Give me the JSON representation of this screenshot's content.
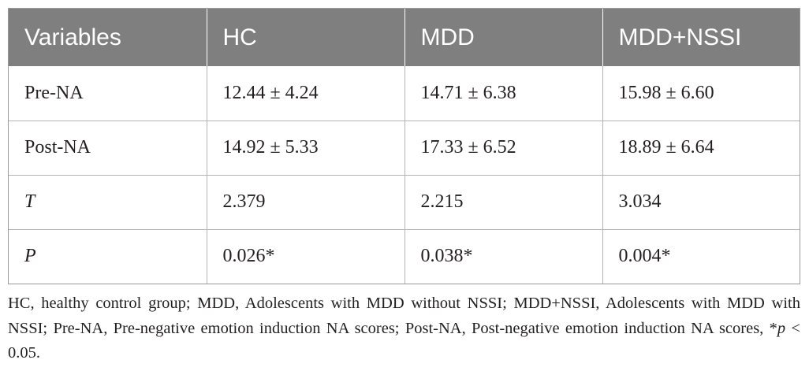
{
  "table": {
    "headers": [
      "Variables",
      "HC",
      "MDD",
      "MDD+NSSI"
    ],
    "rows": [
      {
        "label": "Pre-NA",
        "italic": false,
        "hc": "12.44 ± 4.24",
        "mdd": "14.71 ± 6.38",
        "mdd_nssi": "15.98 ± 6.60"
      },
      {
        "label": "Post-NA",
        "italic": false,
        "hc": "14.92 ± 5.33",
        "mdd": "17.33 ± 6.52",
        "mdd_nssi": "18.89 ± 6.64"
      },
      {
        "label": "T",
        "italic": true,
        "hc": "2.379",
        "mdd": "2.215",
        "mdd_nssi": "3.034"
      },
      {
        "label": "P",
        "italic": true,
        "hc": "0.026*",
        "mdd": "0.038*",
        "mdd_nssi": "0.004*"
      }
    ]
  },
  "footnote": {
    "line1": "HC, healthy control group; MDD, Adolescents with MDD without NSSI; MDD+NSSI,",
    "line2": "Adolescents with MDD with NSSI; Pre-NA, Pre-negative emotion induction NA scores;",
    "line3_prefix": "Post-NA, Post-negative emotion induction NA scores, *",
    "line3_p": "p",
    "line3_suffix": " < 0.05."
  },
  "colors": {
    "header_bg": "#7f7f7f",
    "header_text": "#ffffff",
    "border": "#b3b3b3",
    "text": "#231f20"
  }
}
